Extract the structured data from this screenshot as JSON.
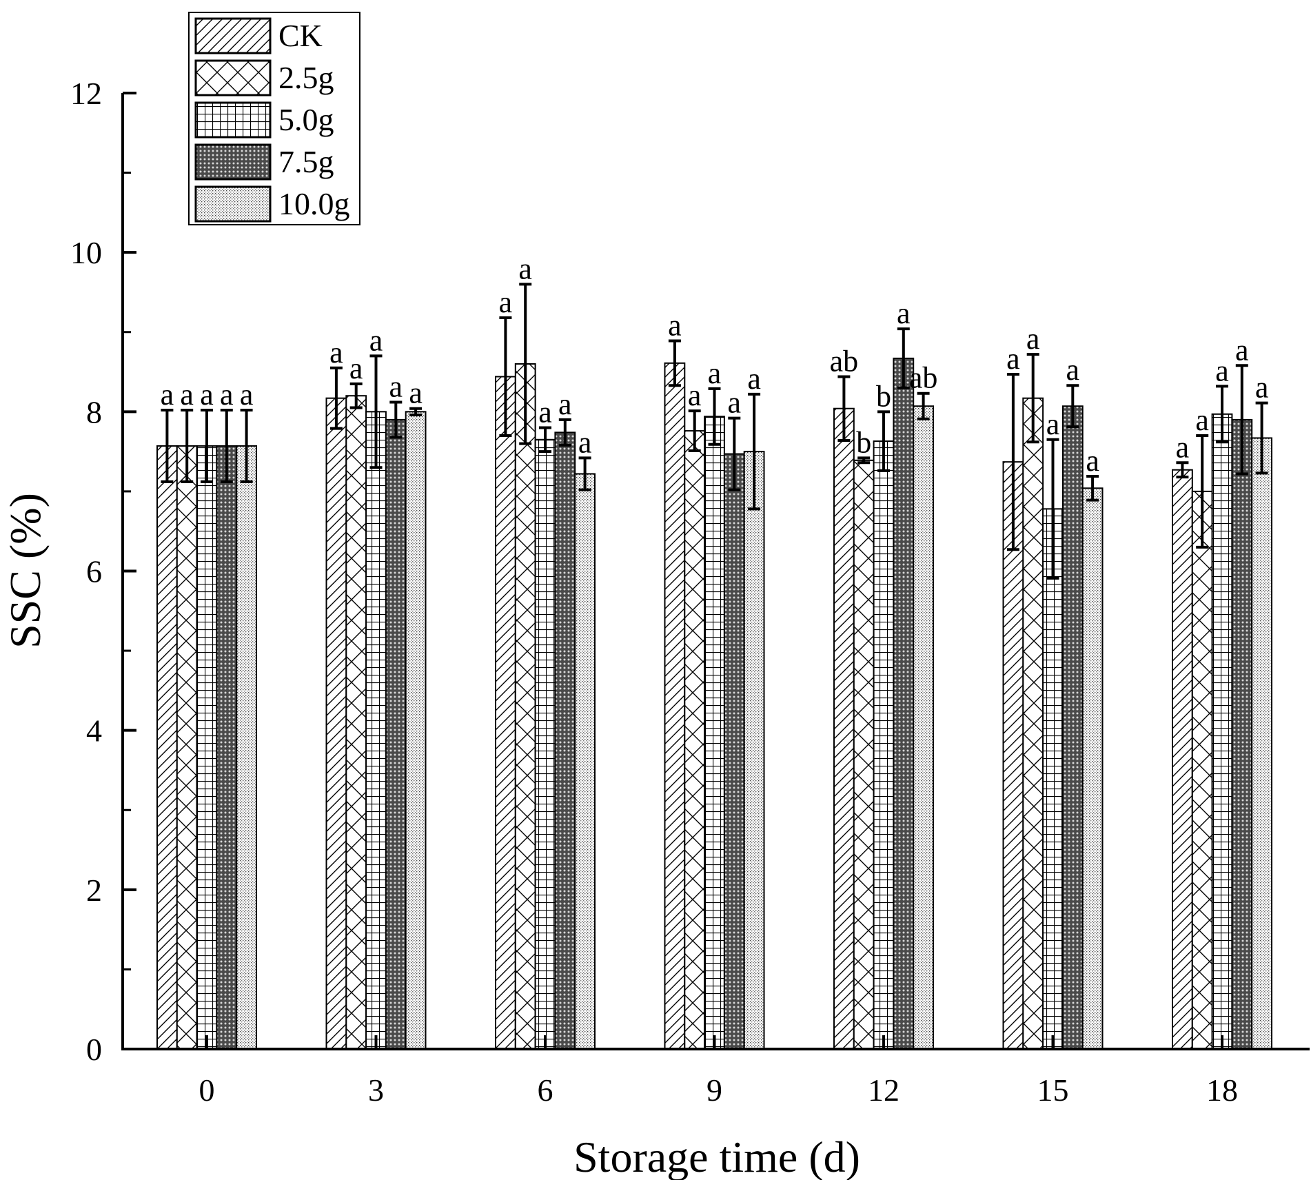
{
  "chart_data": {
    "type": "bar",
    "title": "",
    "xlabel": "Storage time (d)",
    "ylabel": "SSC (%)",
    "categories": [
      "0",
      "3",
      "6",
      "9",
      "12",
      "15",
      "18"
    ],
    "ylim": [
      0,
      12
    ],
    "yticks": [
      "0",
      "2",
      "4",
      "6",
      "8",
      "10",
      "12"
    ],
    "grid": false,
    "legend_position": "top-left",
    "series": [
      {
        "name": "CK",
        "pattern": "diagonal-hatch",
        "values": [
          7.57,
          8.17,
          8.44,
          8.61,
          8.04,
          7.37,
          7.27
        ],
        "errors": [
          0.45,
          0.38,
          0.74,
          0.28,
          0.4,
          1.1,
          0.09
        ],
        "labels": [
          "a",
          "a",
          "a",
          "a",
          "ab",
          "a",
          "a"
        ]
      },
      {
        "name": "2.5g",
        "pattern": "cross-hatch",
        "values": [
          7.57,
          8.2,
          8.6,
          7.76,
          7.39,
          8.17,
          7.0
        ],
        "errors": [
          0.45,
          0.15,
          1.0,
          0.25,
          0.03,
          0.55,
          0.7
        ],
        "labels": [
          "a",
          "a",
          "a",
          "a",
          "b",
          "a",
          "a"
        ]
      },
      {
        "name": "5.0g",
        "pattern": "grid",
        "values": [
          7.57,
          8.0,
          7.65,
          7.94,
          7.63,
          6.78,
          7.97
        ],
        "errors": [
          0.45,
          0.7,
          0.15,
          0.35,
          0.37,
          0.87,
          0.35
        ],
        "labels": [
          "a",
          "a",
          "a",
          "a",
          "b",
          "a",
          "a"
        ]
      },
      {
        "name": "7.5g",
        "pattern": "dark-dots",
        "values": [
          7.57,
          7.9,
          7.74,
          7.47,
          8.67,
          8.07,
          7.9
        ],
        "errors": [
          0.45,
          0.22,
          0.16,
          0.45,
          0.37,
          0.26,
          0.68
        ],
        "labels": [
          "a",
          "a",
          "a",
          "a",
          "a",
          "a",
          "a"
        ]
      },
      {
        "name": "10.0g",
        "pattern": "fine-dots",
        "values": [
          7.57,
          8.0,
          7.22,
          7.5,
          8.07,
          7.04,
          7.67
        ],
        "errors": [
          0.45,
          0.04,
          0.2,
          0.72,
          0.16,
          0.15,
          0.44
        ],
        "labels": [
          "a",
          "a",
          "a",
          "a",
          "ab",
          "a",
          "a"
        ]
      }
    ]
  }
}
